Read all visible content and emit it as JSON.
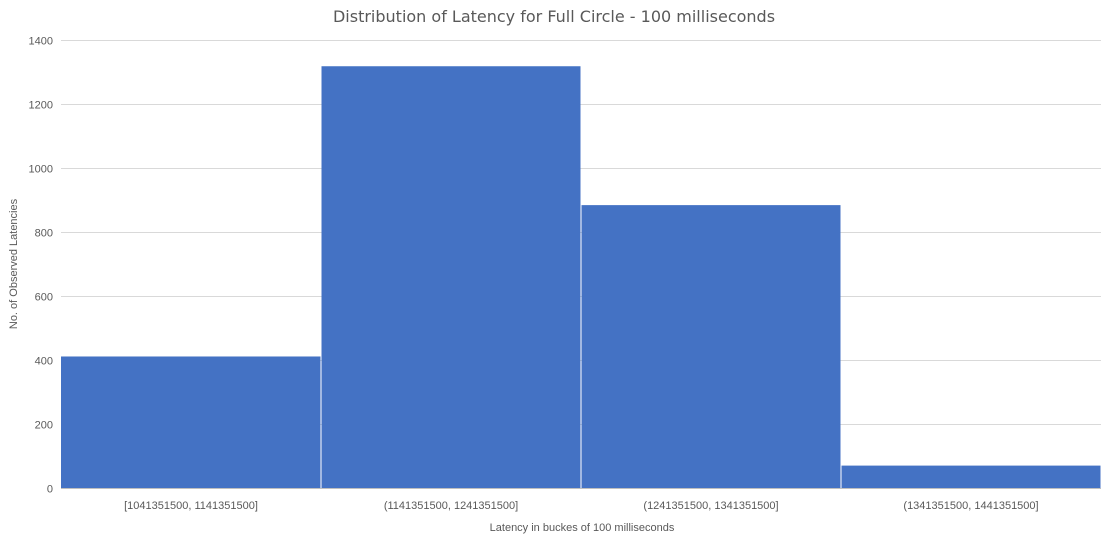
{
  "chart_data": {
    "type": "bar",
    "title": "Distribution of Latency for Full Circle - 100 milliseconds",
    "xlabel": "Latency in buckes of 100 milliseconds",
    "ylabel": "No. of Observed Latencies",
    "categories": [
      "[1041351500, 1141351500]",
      "(1141351500, 1241351500]",
      "(1241351500, 1341351500]",
      "(1341351500, 1441351500]"
    ],
    "values": [
      411,
      1318,
      884,
      70
    ],
    "ylim": [
      0,
      1400
    ],
    "yticks": [
      0,
      200,
      400,
      600,
      800,
      1000,
      1200,
      1400
    ],
    "grid": true,
    "bar_color": "#4472C4",
    "grid_color": "#D9D9D9"
  }
}
